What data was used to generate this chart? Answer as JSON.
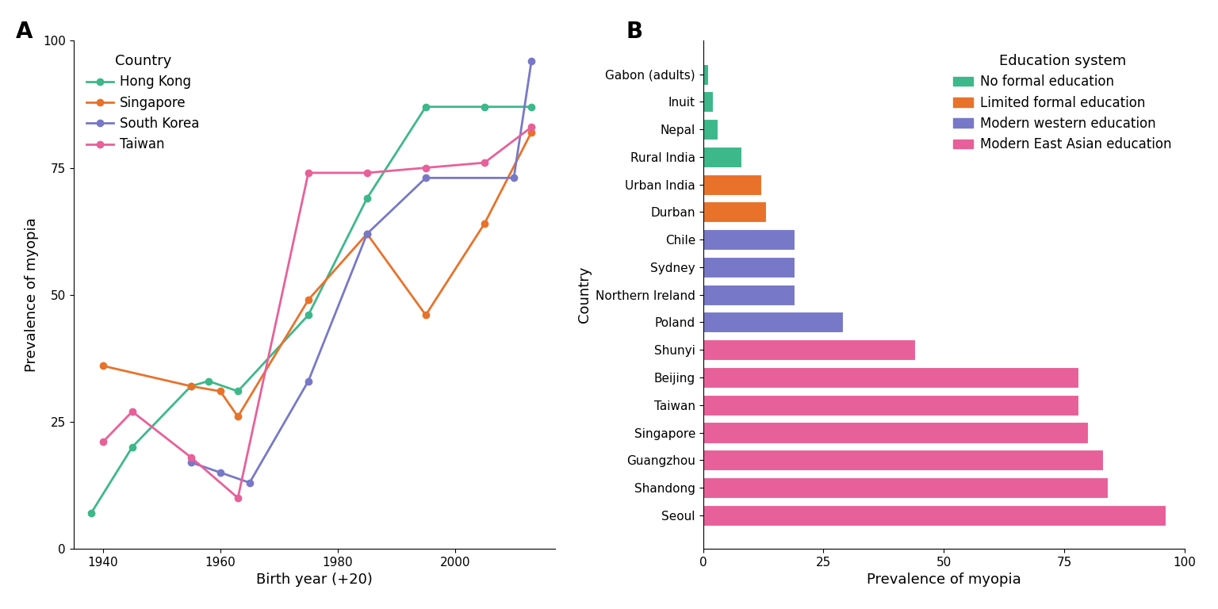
{
  "line_data": {
    "Hong Kong": {
      "years": [
        1938,
        1945,
        1955,
        1958,
        1963,
        1975,
        1985,
        1995,
        2005,
        2013
      ],
      "values": [
        7,
        20,
        32,
        33,
        31,
        46,
        69,
        87,
        87,
        87
      ],
      "color": "#3db88a"
    },
    "Singapore": {
      "years": [
        1940,
        1955,
        1960,
        1963,
        1975,
        1985,
        1995,
        2005,
        2013
      ],
      "values": [
        36,
        32,
        31,
        26,
        49,
        62,
        46,
        64,
        82
      ],
      "color": "#e8722a"
    },
    "South Korea": {
      "years": [
        1955,
        1960,
        1965,
        1975,
        1985,
        1995,
        2010,
        2013
      ],
      "values": [
        17,
        15,
        13,
        33,
        62,
        73,
        73,
        96
      ],
      "color": "#7878c8"
    },
    "Taiwan": {
      "years": [
        1940,
        1945,
        1955,
        1963,
        1975,
        1985,
        1995,
        2005,
        2013
      ],
      "values": [
        21,
        27,
        18,
        10,
        74,
        74,
        75,
        76,
        83
      ],
      "color": "#e86099"
    }
  },
  "bar_data": {
    "countries": [
      "Gabon (adults)",
      "Inuit",
      "Nepal",
      "Rural India",
      "Urban India",
      "Durban",
      "Chile",
      "Sydney",
      "Northern Ireland",
      "Poland",
      "Shunyi",
      "Beijing",
      "Taiwan",
      "Singapore",
      "Guangzhou",
      "Shandong",
      "Seoul"
    ],
    "values": [
      1,
      2,
      3,
      8,
      12,
      13,
      19,
      19,
      19,
      29,
      44,
      78,
      78,
      80,
      83,
      84,
      96
    ],
    "colors": [
      "#3db88a",
      "#3db88a",
      "#3db88a",
      "#3db88a",
      "#e8722a",
      "#e8722a",
      "#7878c8",
      "#7878c8",
      "#7878c8",
      "#7878c8",
      "#e86099",
      "#e86099",
      "#e86099",
      "#e86099",
      "#e86099",
      "#e86099",
      "#e86099"
    ]
  },
  "education_colors": {
    "No formal education": "#3db88a",
    "Limited formal education": "#e8722a",
    "Modern western education": "#7878c8",
    "Modern East Asian education": "#e86099"
  },
  "panel_A_title": "A",
  "panel_B_title": "B",
  "xlabel_A": "Birth year (+20)",
  "ylabel_A": "Prevalence of myopia",
  "xlabel_B": "Prevalence of myopia",
  "ylabel_B": "Country",
  "ylim_A": [
    0,
    100
  ],
  "xlim_B": [
    0,
    100
  ],
  "yticks_A": [
    0,
    25,
    50,
    75,
    100
  ],
  "xticks_A": [
    1940,
    1960,
    1980,
    2000
  ],
  "xticks_B": [
    0,
    25,
    50,
    75,
    100
  ]
}
